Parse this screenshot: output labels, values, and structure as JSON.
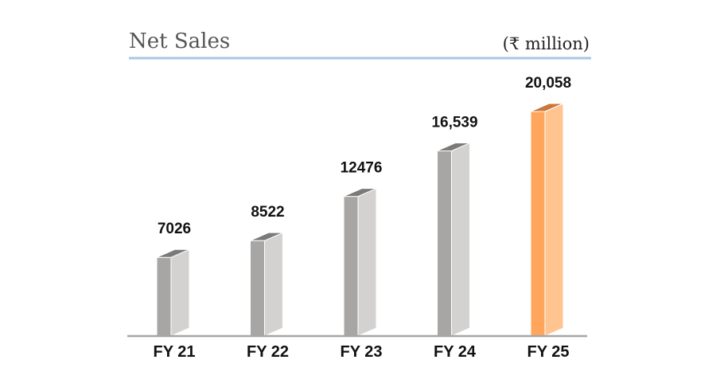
{
  "chart_data": {
    "type": "bar",
    "title": "Net Sales",
    "unit_label": "(₹ million)",
    "categories": [
      "FY 21",
      "FY 22",
      "FY 23",
      "FY 24",
      "FY 25"
    ],
    "values": [
      7026,
      8522,
      12476,
      16539,
      20058
    ],
    "value_labels": [
      "7026",
      "8522",
      "12476",
      "16,539",
      "20,058"
    ],
    "xlabel": "",
    "ylabel": "",
    "ylim": [
      0,
      23000
    ],
    "grid": false,
    "legend": "none",
    "colors": {
      "bar_front": "#a8a6a5",
      "bar_side": "#d4d2d1",
      "bar_top": "#7c7a79",
      "highlight_front": "#ffa65c",
      "highlight_side": "#ffc48f",
      "highlight_top": "#c9773a",
      "title_rule": "#a9c6e6",
      "baseline": "#a6a6a6"
    },
    "highlight_index": 4
  }
}
